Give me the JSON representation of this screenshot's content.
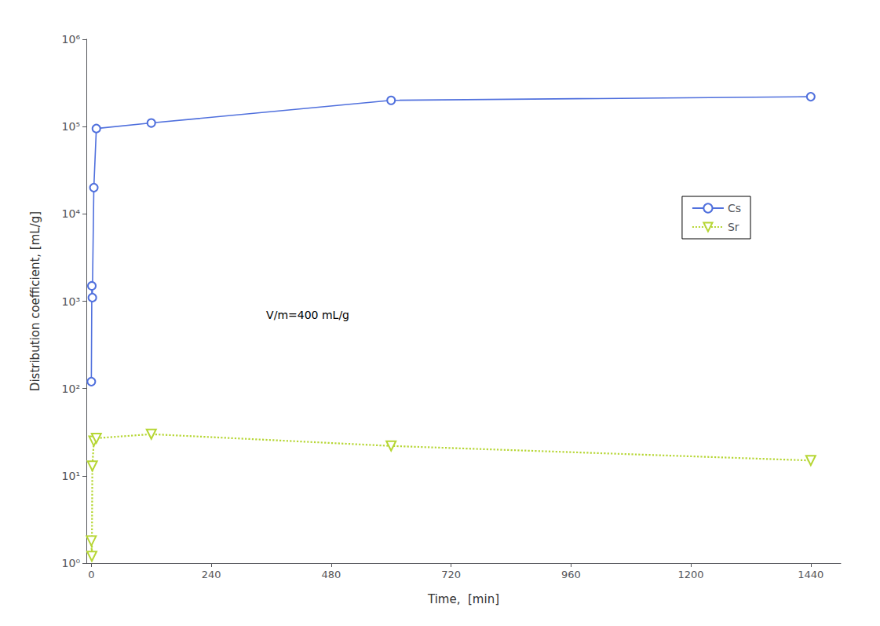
{
  "chart_data": {
    "type": "line",
    "x": [
      0,
      1,
      2,
      5,
      10,
      120,
      600,
      1440
    ],
    "series": [
      {
        "name": "Cs",
        "values": [
          120,
          1500,
          1100,
          20000,
          95000,
          110000,
          200000,
          220000
        ],
        "marker": "circle",
        "line_style": "solid"
      },
      {
        "name": "Sr",
        "values": [
          1.8,
          1.2,
          13,
          25,
          27,
          30,
          22,
          15
        ],
        "marker": "triangle-down",
        "line_style": "dotted"
      }
    ],
    "x_label": "Time,  [min]",
    "y_label": "Distribution coefficient, [mL/g]",
    "annotations": [
      {
        "text": "V/m=400 mL/g",
        "x": 350,
        "y": 700
      }
    ],
    "xlim": [
      -10,
      1500
    ],
    "xticks": [
      0,
      240,
      480,
      720,
      960,
      1200,
      1440
    ],
    "ylim": [
      1,
      1000000
    ],
    "yticks": [
      {
        "value": 1,
        "label": "10⁰"
      },
      {
        "value": 10,
        "label": "10¹"
      },
      {
        "value": 100,
        "label": "10²"
      },
      {
        "value": 1000,
        "label": "10³"
      },
      {
        "value": 10000,
        "label": "10⁴"
      },
      {
        "value": 100000,
        "label": "10⁵"
      },
      {
        "value": 1000000,
        "label": "10⁶"
      }
    ],
    "log": "y",
    "grid": false,
    "legend": "upper right"
  }
}
